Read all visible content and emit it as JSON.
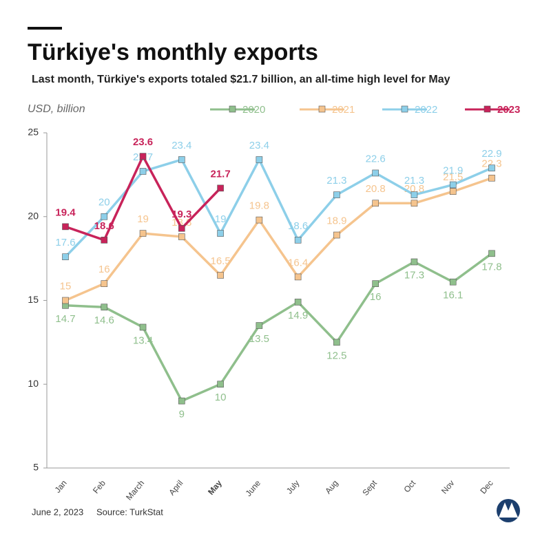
{
  "chart_data": {
    "type": "line",
    "title": "Türkiye's monthly exports",
    "subtitle": "Last month, Türkiye's exports totaled $21.7 billion, an all-time high level for May",
    "y_label": "USD, billion",
    "date": "June 2, 2023",
    "source": "Source: TurkStat",
    "categories": [
      "Jan",
      "Feb",
      "March",
      "April",
      "May",
      "June",
      "July",
      "Aug",
      "Sept",
      "Oct",
      "Nov",
      "Dec"
    ],
    "series": [
      {
        "name": "2020",
        "color": "#8fbf8c",
        "values": [
          14.7,
          14.6,
          13.4,
          9,
          10,
          13.5,
          14.9,
          12.5,
          16,
          17.3,
          16.1,
          17.8
        ]
      },
      {
        "name": "2021",
        "color": "#f5c48e",
        "values": [
          15,
          16,
          19,
          18.8,
          16.5,
          19.8,
          16.4,
          18.9,
          20.8,
          20.8,
          21.5,
          22.3
        ]
      },
      {
        "name": "2022",
        "color": "#8dcfe9",
        "values": [
          17.6,
          20,
          22.7,
          23.4,
          19,
          23.4,
          18.6,
          21.3,
          22.6,
          21.3,
          21.9,
          22.9
        ]
      },
      {
        "name": "2023",
        "color": "#c8235a",
        "values": [
          19.4,
          18.6,
          23.6,
          19.3,
          21.7,
          null,
          null,
          null,
          null,
          null,
          null,
          null
        ]
      }
    ],
    "ylim": [
      5,
      25
    ],
    "yticks": [
      5,
      10,
      15,
      20,
      25
    ]
  }
}
